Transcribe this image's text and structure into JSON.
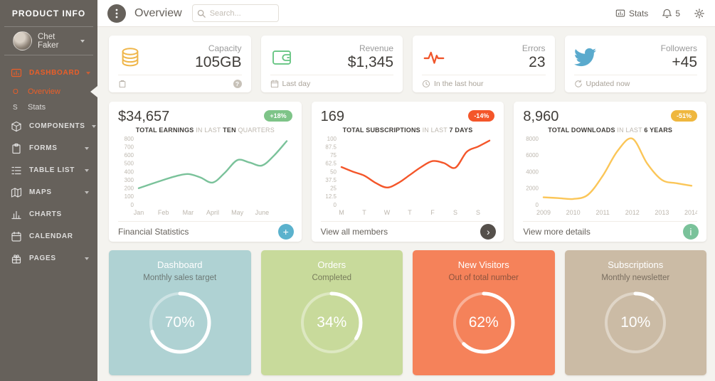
{
  "colors": {
    "accent": "#EB5E28",
    "sidebar_bg": "#66615B",
    "background": "#F4F3EF"
  },
  "sidebar": {
    "brand": "PRODUCT INFO",
    "user": {
      "name": "Chet Faker"
    },
    "items": [
      {
        "label": "DASHBOARD",
        "icon": "dashboard-icon",
        "caret": true,
        "active": true
      },
      {
        "label": "COMPONENTS",
        "icon": "components-icon",
        "caret": true
      },
      {
        "label": "FORMS",
        "icon": "forms-icon",
        "caret": true
      },
      {
        "label": "TABLE LIST",
        "icon": "table-list-icon",
        "caret": true
      },
      {
        "label": "MAPS",
        "icon": "maps-icon",
        "caret": true
      },
      {
        "label": "CHARTS",
        "icon": "charts-icon",
        "caret": false
      },
      {
        "label": "CALENDAR",
        "icon": "calendar-icon",
        "caret": false
      },
      {
        "label": "PAGES",
        "icon": "pages-icon",
        "caret": true
      }
    ],
    "subitems": [
      {
        "mini": "O",
        "label": "Overview",
        "active": true
      },
      {
        "mini": "S",
        "label": "Stats",
        "active": false
      }
    ]
  },
  "navbar": {
    "title": "Overview",
    "search_placeholder": "Search...",
    "stats_label": "Stats",
    "notification_count": "5"
  },
  "stat_cards": [
    {
      "label": "Capacity",
      "value": "105GB",
      "icon": "coins-icon",
      "icon_color": "#EFB64A",
      "footer_icon": "clipboard-icon",
      "footer_text": "",
      "help_icon": "?"
    },
    {
      "label": "Revenue",
      "value": "$1,345",
      "icon": "wallet-icon",
      "icon_color": "#66C582",
      "footer_icon": "calendar-icon",
      "footer_text": "Last day"
    },
    {
      "label": "Errors",
      "value": "23",
      "icon": "pulse-icon",
      "icon_color": "#F0552B",
      "footer_icon": "clock-icon",
      "footer_text": "In the last hour"
    },
    {
      "label": "Followers",
      "value": "+45",
      "icon": "twitter-icon",
      "icon_color": "#5AAACD",
      "footer_icon": "refresh-icon",
      "footer_text": "Updated now"
    }
  ],
  "chart_data": [
    {
      "type": "line",
      "headline": "$34,657",
      "badge": "+18%",
      "badge_color": "#7EC488",
      "color": "#7AC29A",
      "title": "TOTAL EARNINGS IN LAST TEN QUARTERS",
      "subtitle_parts": [
        [
          "TOTAL EARNINGS",
          true
        ],
        [
          " IN LAST ",
          false
        ],
        [
          "TEN",
          true
        ],
        [
          " QUARTERS",
          false
        ]
      ],
      "x_labels": [
        "Jan",
        "Feb",
        "Mar",
        "April",
        "May",
        "June"
      ],
      "y_ticks": [
        800,
        700,
        600,
        500,
        400,
        300,
        200,
        100,
        0
      ],
      "ylim": [
        0,
        800
      ],
      "values": [
        200,
        250,
        300,
        345,
        372,
        330,
        268,
        390,
        540,
        510,
        475,
        600,
        770
      ],
      "footer": {
        "label": "Financial Statistics",
        "button_icon": "plus-icon",
        "button_color": "#5BB2CD"
      }
    },
    {
      "type": "line",
      "headline": "169",
      "badge": "-14%",
      "badge_color": "#F4562A",
      "color": "#F4562A",
      "title": "TOTAL SUBSCRIPTIONS IN LAST 7 DAYS",
      "subtitle_parts": [
        [
          "TOTAL SUBSCRIPTIONS",
          true
        ],
        [
          " IN LAST ",
          false
        ],
        [
          "7 DAYS",
          true
        ]
      ],
      "x_labels": [
        "M",
        "T",
        "W",
        "T",
        "F",
        "S",
        "S"
      ],
      "y_ticks": [
        100,
        87.5,
        75,
        62.5,
        50,
        37.5,
        25,
        12.5,
        0
      ],
      "ylim": [
        0,
        100
      ],
      "values": [
        57,
        50,
        44,
        33,
        26,
        33,
        45,
        57,
        66,
        63,
        56,
        80,
        88,
        97
      ],
      "footer": {
        "label": "View all members",
        "button_icon": "arrow-right-icon",
        "button_color": "#55504B"
      }
    },
    {
      "type": "line",
      "headline": "8,960",
      "badge": "-51%",
      "badge_color": "#EFB73E",
      "color": "#FBC658",
      "title": "TOTAL DOWNLOADS IN LAST 6 YEARS",
      "subtitle_parts": [
        [
          "TOTAL DOWNLOADS",
          true
        ],
        [
          " IN LAST ",
          false
        ],
        [
          "6 YEARS",
          true
        ]
      ],
      "x_labels": [
        "2009",
        "2010",
        "2011",
        "2012",
        "2013",
        "2014"
      ],
      "y_ticks": [
        8000,
        6000,
        4000,
        2000,
        0
      ],
      "ylim": [
        0,
        8000
      ],
      "values": [
        900,
        800,
        700,
        1200,
        3500,
        6500,
        8000,
        5000,
        3000,
        2600,
        2300
      ],
      "footer": {
        "label": "View more details",
        "button_icon": "info-icon",
        "button_color": "#7AC29A"
      }
    }
  ],
  "progress_cards": [
    {
      "title": "Dashboard",
      "subtitle": "Monthly sales target",
      "percent": 70,
      "percent_label": "70%",
      "bg": "#AFD2D3"
    },
    {
      "title": "Orders",
      "subtitle": "Completed",
      "percent": 34,
      "percent_label": "34%",
      "bg": "#C8DA9B"
    },
    {
      "title": "New Visitors",
      "subtitle": "Out of total number",
      "percent": 62,
      "percent_label": "62%",
      "bg": "#F5825A"
    },
    {
      "title": "Subscriptions",
      "subtitle": "Monthly newsletter",
      "percent": 10,
      "percent_label": "10%",
      "bg": "#CBBBA5"
    }
  ]
}
